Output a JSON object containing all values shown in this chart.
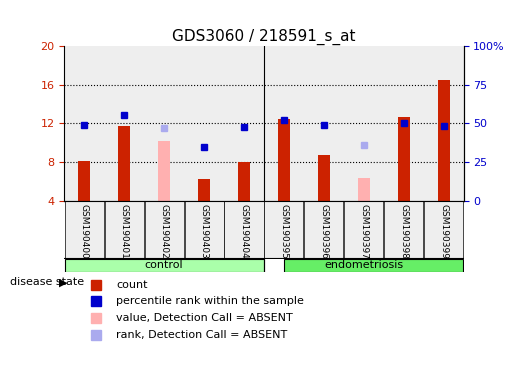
{
  "title": "GDS3060 / 218591_s_at",
  "samples": [
    "GSM190400",
    "GSM190401",
    "GSM190402",
    "GSM190403",
    "GSM190404",
    "GSM190395",
    "GSM190396",
    "GSM190397",
    "GSM190398",
    "GSM190399"
  ],
  "groups": [
    {
      "name": "control",
      "indices": [
        0,
        1,
        2,
        3,
        4
      ]
    },
    {
      "name": "endometriosis",
      "indices": [
        5,
        6,
        7,
        8,
        9
      ]
    }
  ],
  "red_bars": [
    8.1,
    11.7,
    null,
    6.2,
    8.0,
    12.5,
    8.7,
    null,
    12.7,
    16.5
  ],
  "pink_bars": [
    null,
    null,
    10.2,
    null,
    null,
    null,
    null,
    6.3,
    null,
    null
  ],
  "blue_squares": [
    11.85,
    12.85,
    null,
    9.6,
    11.6,
    12.4,
    11.85,
    null,
    12.0,
    11.7
  ],
  "light_blue_squares": [
    null,
    null,
    11.55,
    null,
    null,
    null,
    null,
    9.8,
    null,
    null
  ],
  "ylim_left": [
    4,
    20
  ],
  "ylim_right": [
    0,
    100
  ],
  "yticks_left": [
    4,
    8,
    12,
    16,
    20
  ],
  "yticks_right": [
    0,
    25,
    50,
    75,
    100
  ],
  "yticklabels_right": [
    "0",
    "25",
    "50",
    "75",
    "100%"
  ],
  "red_color": "#CC2200",
  "pink_color": "#FFB0B0",
  "blue_color": "#0000CC",
  "light_blue_color": "#AAAAEE",
  "group_colors": [
    "#AAFFAA",
    "#66EE66"
  ],
  "bar_width": 0.5,
  "grid_color": "black",
  "background_color": "#EEEEEE"
}
